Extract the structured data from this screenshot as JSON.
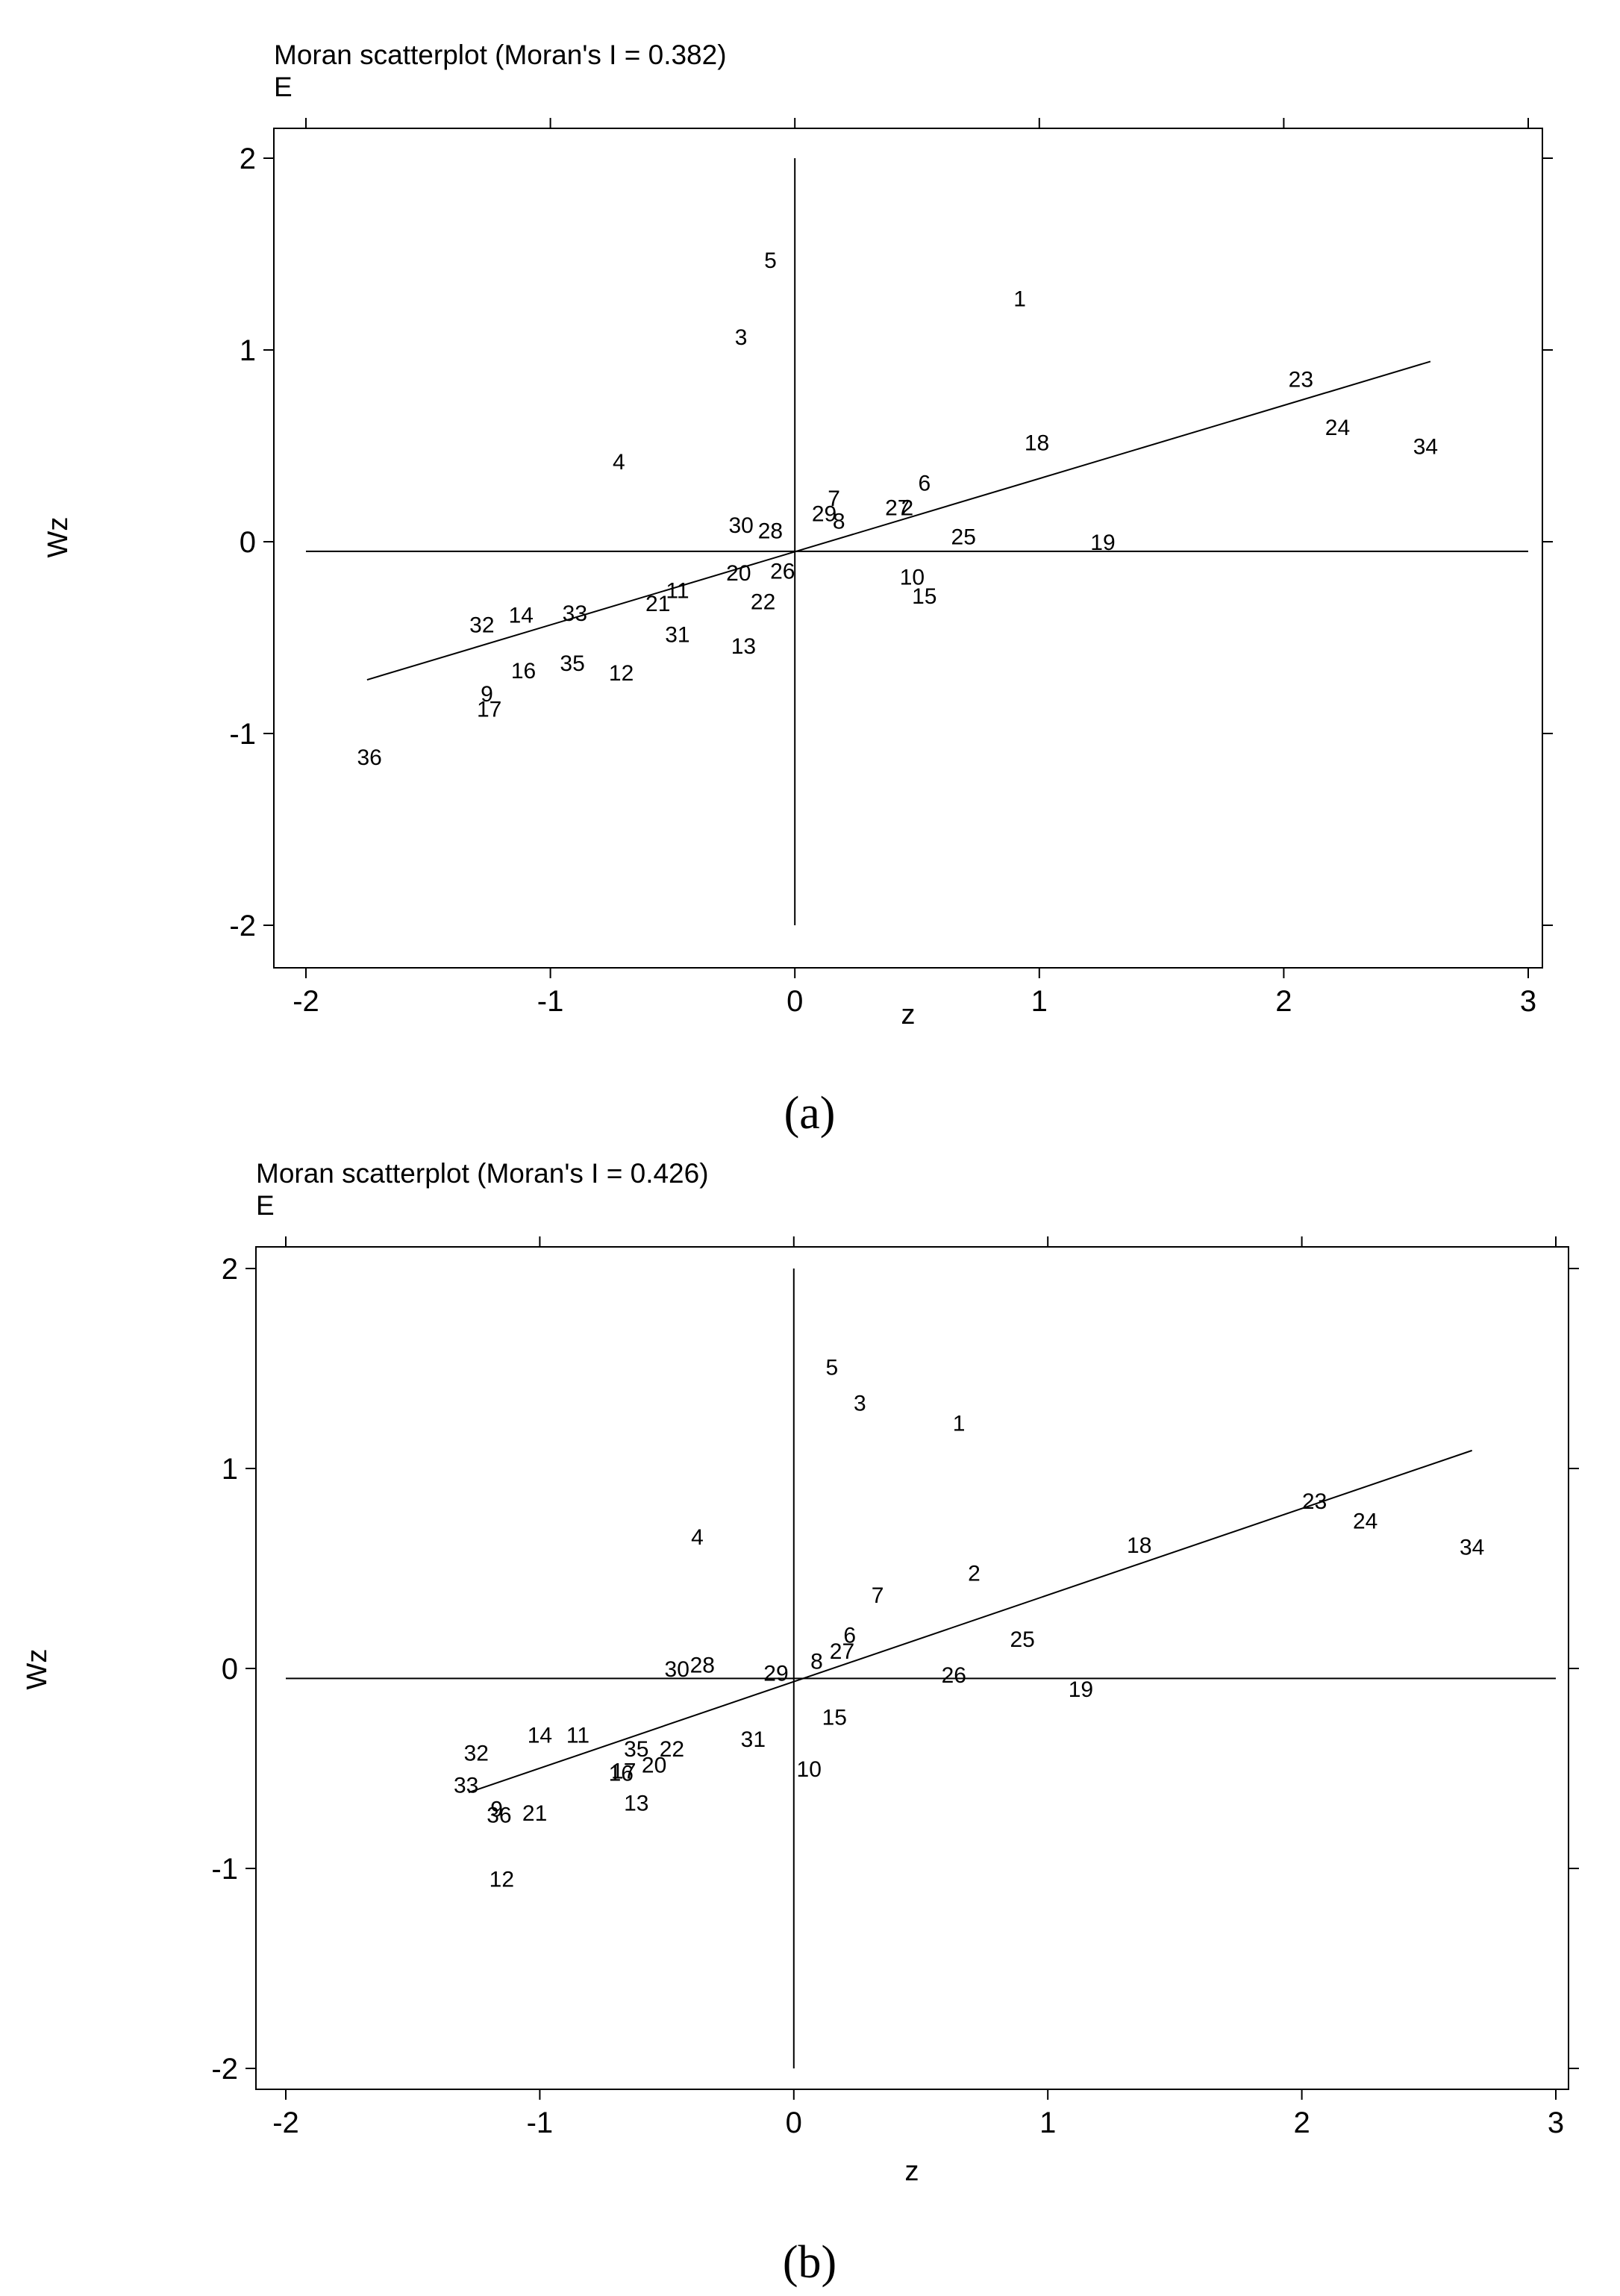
{
  "chart_data": [
    {
      "type": "scatter",
      "title": "Moran scatterplot (Moran's I = 0.382)",
      "subtitle": "E",
      "xlabel": "z",
      "ylabel": "Wz",
      "xlim": [
        -2.2,
        3.0
      ],
      "ylim": [
        -2.15,
        2.15
      ],
      "xticks": [
        -2,
        -1,
        0,
        1,
        2,
        3
      ],
      "yticks": [
        -2,
        -1,
        0,
        1,
        2
      ],
      "reference_lines": {
        "x": 0,
        "y": -0.05,
        "x_range": [
          -2,
          3
        ],
        "y_range": [
          -2,
          2
        ]
      },
      "fit_line": [
        [
          -1.75,
          -0.72
        ],
        [
          2.6,
          0.94
        ]
      ],
      "points": [
        {
          "label": "1",
          "x": 0.92,
          "y": 1.27
        },
        {
          "label": "2",
          "x": 0.46,
          "y": 0.18
        },
        {
          "label": "3",
          "x": -0.22,
          "y": 1.07
        },
        {
          "label": "4",
          "x": -0.72,
          "y": 0.42
        },
        {
          "label": "5",
          "x": -0.1,
          "y": 1.47
        },
        {
          "label": "6",
          "x": 0.53,
          "y": 0.31
        },
        {
          "label": "7",
          "x": 0.16,
          "y": 0.23
        },
        {
          "label": "8",
          "x": 0.18,
          "y": 0.11
        },
        {
          "label": "9",
          "x": -1.26,
          "y": -0.79
        },
        {
          "label": "10",
          "x": 0.48,
          "y": -0.18
        },
        {
          "label": "11",
          "x": -0.48,
          "y": -0.25
        },
        {
          "label": "12",
          "x": -0.71,
          "y": -0.68
        },
        {
          "label": "13",
          "x": -0.21,
          "y": -0.54
        },
        {
          "label": "14",
          "x": -1.12,
          "y": -0.38
        },
        {
          "label": "15",
          "x": 0.53,
          "y": -0.28
        },
        {
          "label": "16",
          "x": -1.11,
          "y": -0.67
        },
        {
          "label": "17",
          "x": -1.25,
          "y": -0.87
        },
        {
          "label": "18",
          "x": 0.99,
          "y": 0.52
        },
        {
          "label": "19",
          "x": 1.26,
          "y": 0.0
        },
        {
          "label": "20",
          "x": -0.23,
          "y": -0.16
        },
        {
          "label": "21",
          "x": -0.56,
          "y": -0.32
        },
        {
          "label": "22",
          "x": -0.13,
          "y": -0.31
        },
        {
          "label": "23",
          "x": 2.07,
          "y": 0.85
        },
        {
          "label": "24",
          "x": 2.22,
          "y": 0.6
        },
        {
          "label": "25",
          "x": 0.69,
          "y": 0.03
        },
        {
          "label": "26",
          "x": -0.05,
          "y": -0.15
        },
        {
          "label": "27",
          "x": 0.42,
          "y": 0.18
        },
        {
          "label": "28",
          "x": -0.1,
          "y": 0.06
        },
        {
          "label": "29",
          "x": 0.12,
          "y": 0.15
        },
        {
          "label": "30",
          "x": -0.22,
          "y": 0.09
        },
        {
          "label": "31",
          "x": -0.48,
          "y": -0.48
        },
        {
          "label": "32",
          "x": -1.28,
          "y": -0.43
        },
        {
          "label": "33",
          "x": -0.9,
          "y": -0.37
        },
        {
          "label": "34",
          "x": 2.58,
          "y": 0.5
        },
        {
          "label": "35",
          "x": -0.91,
          "y": -0.63
        },
        {
          "label": "36",
          "x": -1.74,
          "y": -1.12
        }
      ]
    },
    {
      "type": "scatter",
      "title": "Moran scatterplot (Moran's I = 0.426)",
      "subtitle": "E",
      "xlabel": "z",
      "ylabel": "Wz",
      "xlim": [
        -2.1,
        3.1
      ],
      "ylim": [
        -2.15,
        2.15
      ],
      "xticks": [
        -2,
        -1,
        0,
        1,
        2,
        3
      ],
      "yticks": [
        -2,
        -1,
        0,
        1,
        2
      ],
      "reference_lines": {
        "x": 0,
        "y": -0.05,
        "x_range": [
          -2,
          3
        ],
        "y_range": [
          -2,
          2
        ]
      },
      "fit_line": [
        [
          -1.28,
          -0.62
        ],
        [
          2.67,
          1.09
        ]
      ],
      "points": [
        {
          "label": "1",
          "x": 0.65,
          "y": 1.23
        },
        {
          "label": "2",
          "x": 0.71,
          "y": 0.48
        },
        {
          "label": "3",
          "x": 0.26,
          "y": 1.33
        },
        {
          "label": "4",
          "x": -0.38,
          "y": 0.66
        },
        {
          "label": "5",
          "x": 0.15,
          "y": 1.51
        },
        {
          "label": "6",
          "x": 0.22,
          "y": 0.17
        },
        {
          "label": "7",
          "x": 0.33,
          "y": 0.37
        },
        {
          "label": "8",
          "x": 0.09,
          "y": 0.04
        },
        {
          "label": "9",
          "x": -1.17,
          "y": -0.7
        },
        {
          "label": "10",
          "x": 0.06,
          "y": -0.5
        },
        {
          "label": "11",
          "x": -0.85,
          "y": -0.33
        },
        {
          "label": "12",
          "x": -1.15,
          "y": -1.05
        },
        {
          "label": "13",
          "x": -0.62,
          "y": -0.67
        },
        {
          "label": "14",
          "x": -1.0,
          "y": -0.33
        },
        {
          "label": "15",
          "x": 0.16,
          "y": -0.24
        },
        {
          "label": "16",
          "x": -0.68,
          "y": -0.52
        },
        {
          "label": "17",
          "x": -0.67,
          "y": -0.51
        },
        {
          "label": "18",
          "x": 1.36,
          "y": 0.62
        },
        {
          "label": "19",
          "x": 1.13,
          "y": -0.1
        },
        {
          "label": "20",
          "x": -0.55,
          "y": -0.48
        },
        {
          "label": "21",
          "x": -1.02,
          "y": -0.72
        },
        {
          "label": "22",
          "x": -0.48,
          "y": -0.4
        },
        {
          "label": "23",
          "x": 2.05,
          "y": 0.84
        },
        {
          "label": "24",
          "x": 2.25,
          "y": 0.74
        },
        {
          "label": "25",
          "x": 0.9,
          "y": 0.15
        },
        {
          "label": "26",
          "x": 0.63,
          "y": -0.03
        },
        {
          "label": "27",
          "x": 0.19,
          "y": 0.09
        },
        {
          "label": "28",
          "x": -0.36,
          "y": 0.02
        },
        {
          "label": "29",
          "x": -0.07,
          "y": -0.02
        },
        {
          "label": "30",
          "x": -0.46,
          "y": 0.0
        },
        {
          "label": "31",
          "x": -0.16,
          "y": -0.35
        },
        {
          "label": "32",
          "x": -1.25,
          "y": -0.42
        },
        {
          "label": "33",
          "x": -1.29,
          "y": -0.58
        },
        {
          "label": "34",
          "x": 2.67,
          "y": 0.61
        },
        {
          "label": "35",
          "x": -0.62,
          "y": -0.4
        },
        {
          "label": "36",
          "x": -1.16,
          "y": -0.73
        }
      ]
    }
  ],
  "captions": [
    "(a)",
    "(b)"
  ]
}
